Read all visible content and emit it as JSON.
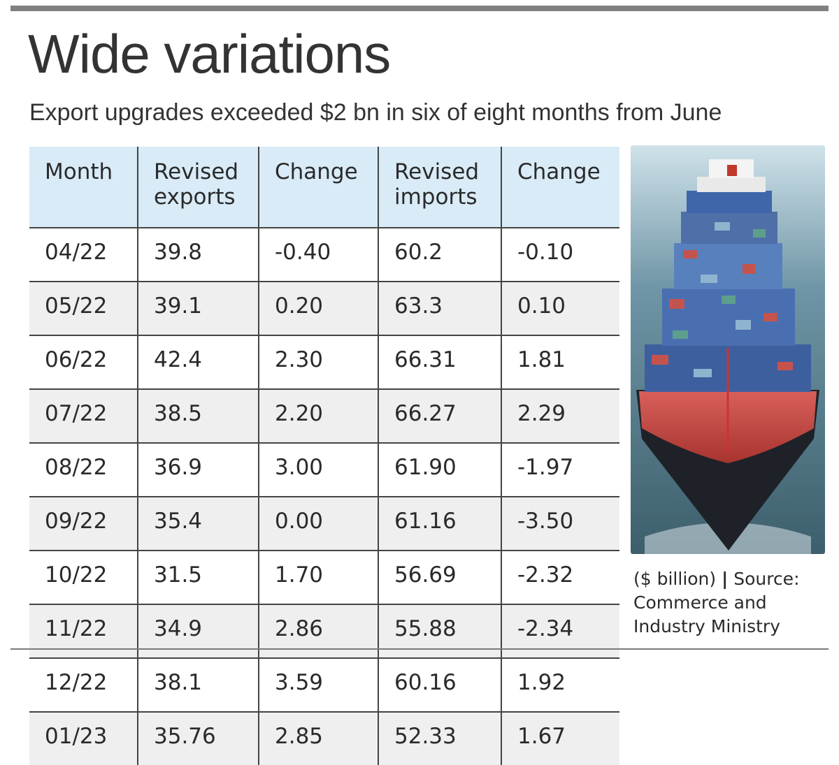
{
  "title": "Wide variations",
  "subtitle": "Export upgrades exceeded $2 bn in six of eight months from June",
  "note": {
    "unit": "($ billion)",
    "separator": "|",
    "source": "Source: Commerce and Industry Ministry"
  },
  "photo": {
    "icon": "container-ship-photo"
  },
  "colors": {
    "header_bg": "#d8ebf7",
    "alt_row_bg": "#efefef",
    "rule": "#808080"
  },
  "chart_data": {
    "type": "table",
    "columns": [
      "Month",
      "Revised exports",
      "Change",
      "Revised imports",
      "Change"
    ],
    "rows": [
      [
        "04/22",
        "39.8",
        "-0.40",
        "60.2",
        "-0.10"
      ],
      [
        "05/22",
        "39.1",
        "0.20",
        "63.3",
        "0.10"
      ],
      [
        "06/22",
        "42.4",
        "2.30",
        "66.31",
        "1.81"
      ],
      [
        "07/22",
        "38.5",
        "2.20",
        "66.27",
        "2.29"
      ],
      [
        "08/22",
        "36.9",
        "3.00",
        "61.90",
        "-1.97"
      ],
      [
        "09/22",
        "35.4",
        "0.00",
        "61.16",
        "-3.50"
      ],
      [
        "10/22",
        "31.5",
        "1.70",
        "56.69",
        "-2.32"
      ],
      [
        "11/22",
        "34.9",
        "2.86",
        "55.88",
        "-2.34"
      ],
      [
        "12/22",
        "38.1",
        "3.59",
        "60.16",
        "1.92"
      ],
      [
        "01/23",
        "35.76",
        "2.85",
        "52.33",
        "1.67"
      ]
    ]
  }
}
